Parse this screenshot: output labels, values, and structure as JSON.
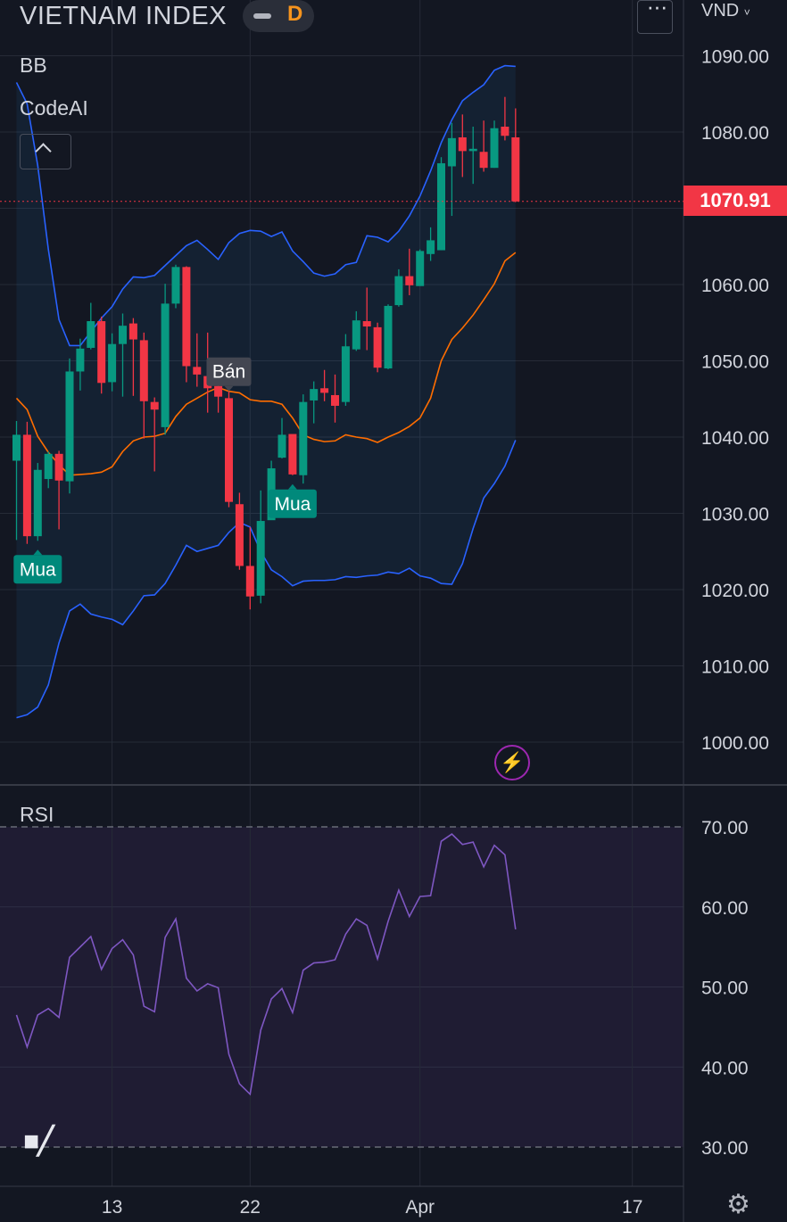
{
  "header": {
    "title": "VIETNAM INDEX",
    "timeframe": "D",
    "currency": "VND",
    "menu_icon": "more-horizontal-icon"
  },
  "indicators": {
    "bb_label": "BB",
    "codeai_label": "CodeAI",
    "rsi_label": "RSI",
    "collapse_icon": "chevron-up-icon"
  },
  "last_price": "1070.91",
  "colors": {
    "background": "#131722",
    "up_candle": "#089981",
    "down_candle": "#f23645",
    "bb_band": "#2962ff",
    "bb_basis": "#ff6d00",
    "rsi_line": "#7e57c2",
    "buy_label": "#00897b",
    "sell_label": "#434651"
  },
  "icons": [
    "lightning-icon",
    "tradingview-logo-icon",
    "settings-gear-icon"
  ],
  "chart_data": [
    {
      "type": "candlestick",
      "title": "VIETNAM INDEX",
      "timeframe": "D",
      "y_axis_ticks": [
        "1090.00",
        "1080.00",
        "1070.00",
        "1060.00",
        "1050.00",
        "1040.00",
        "1030.00",
        "1020.00",
        "1010.00",
        "1000.00"
      ],
      "ylim": [
        996,
        1096
      ],
      "x_axis_ticks": [
        {
          "label": "13",
          "index": 9
        },
        {
          "label": "22",
          "index": 22
        },
        {
          "label": "Apr",
          "index": 38
        },
        {
          "label": "17",
          "index": 58
        }
      ],
      "last_price": 1070.91,
      "candles": [
        [
          1036.9,
          1040.3,
          1042.1,
          1026.5
        ],
        [
          1040.3,
          1027.0,
          1042.0,
          1026.0
        ],
        [
          1027.0,
          1035.7,
          1036.6,
          1026.4
        ],
        [
          1034.5,
          1037.8,
          1038.1,
          1033.3
        ],
        [
          1037.8,
          1034.3,
          1038.2,
          1027.9
        ],
        [
          1034.2,
          1048.6,
          1050.3,
          1032.6
        ],
        [
          1048.6,
          1051.6,
          1052.9,
          1046.1
        ],
        [
          1051.7,
          1055.2,
          1057.6,
          1051.5
        ],
        [
          1055.2,
          1047.1,
          1055.8,
          1045.7
        ],
        [
          1047.2,
          1052.2,
          1053.6,
          1046.0
        ],
        [
          1052.2,
          1054.6,
          1056.2,
          1045.3
        ],
        [
          1054.9,
          1052.8,
          1055.6,
          1045.4
        ],
        [
          1052.7,
          1044.7,
          1053.7,
          1039.8
        ],
        [
          1044.6,
          1043.6,
          1045.2,
          1035.5
        ],
        [
          1041.3,
          1057.5,
          1060.1,
          1040.3
        ],
        [
          1057.5,
          1062.3,
          1062.6,
          1056.9
        ],
        [
          1062.3,
          1049.3,
          1062.4,
          1047.2
        ],
        [
          1049.2,
          1048.2,
          1053.6,
          1046.6
        ],
        [
          1048.0,
          1046.4,
          1053.7,
          1043.2
        ],
        [
          1046.7,
          1045.3,
          1050.3,
          1043.2
        ],
        [
          1045.1,
          1031.5,
          1046.0,
          1030.8
        ],
        [
          1031.2,
          1023.1,
          1032.7,
          1022.6
        ],
        [
          1023.1,
          1019.1,
          1028.2,
          1017.4
        ],
        [
          1019.2,
          1029.0,
          1033.0,
          1018.2
        ],
        [
          1029.1,
          1035.9,
          1036.9,
          1030.6
        ],
        [
          1037.3,
          1040.3,
          1042.5,
          1037.2
        ],
        [
          1040.4,
          1035.1,
          1040.3,
          1035.0
        ],
        [
          1035.0,
          1044.6,
          1045.6,
          1033.9
        ],
        [
          1044.8,
          1046.3,
          1047.3,
          1041.8
        ],
        [
          1046.4,
          1045.8,
          1048.8,
          1044.7
        ],
        [
          1045.5,
          1044.1,
          1048.2,
          1041.9
        ],
        [
          1044.6,
          1051.9,
          1053.5,
          1044.1
        ],
        [
          1051.5,
          1055.3,
          1056.5,
          1051.3
        ],
        [
          1055.2,
          1054.5,
          1059.6,
          1051.4
        ],
        [
          1054.4,
          1049.1,
          1055.0,
          1048.5
        ],
        [
          1049.0,
          1057.2,
          1057.4,
          1048.9
        ],
        [
          1057.3,
          1061.1,
          1062.0,
          1057.1
        ],
        [
          1061.1,
          1059.9,
          1064.7,
          1058.6
        ],
        [
          1059.8,
          1064.4,
          1064.6,
          1059.9
        ],
        [
          1064.0,
          1065.8,
          1067.5,
          1063.1
        ],
        [
          1064.5,
          1075.9,
          1076.7,
          1064.5
        ],
        [
          1075.5,
          1079.2,
          1081.2,
          1069.0
        ],
        [
          1079.3,
          1077.5,
          1082.3,
          1074.1
        ],
        [
          1077.5,
          1077.8,
          1080.7,
          1073.2
        ],
        [
          1077.4,
          1075.3,
          1081.5,
          1074.8
        ],
        [
          1075.3,
          1080.5,
          1081.5,
          1075.3
        ],
        [
          1080.7,
          1079.5,
          1084.6,
          1078.9
        ],
        [
          1079.3,
          1070.9,
          1083.1,
          1070.8
        ]
      ],
      "series": [
        {
          "name": "BB upper",
          "values": [
            1086.5,
            1083.7,
            1075.6,
            1064.6,
            1055.4,
            1052.0,
            1052.0,
            1053.8,
            1055.6,
            1057.1,
            1059.4,
            1061.0,
            1060.9,
            1061.2,
            1062.5,
            1063.8,
            1065.1,
            1065.8,
            1064.6,
            1063.3,
            1065.5,
            1066.7,
            1067.1,
            1067.0,
            1066.3,
            1066.9,
            1064.4,
            1063.0,
            1061.5,
            1061.1,
            1061.4,
            1062.6,
            1062.9,
            1066.4,
            1066.2,
            1065.6,
            1067.0,
            1069.0,
            1071.6,
            1074.9,
            1078.6,
            1081.6,
            1084.1,
            1085.2,
            1086.2,
            1088.1,
            1088.7,
            1088.6
          ]
        },
        {
          "name": "BB basis",
          "values": [
            1045.1,
            1043.6,
            1040.1,
            1038.0,
            1036.4,
            1035.0,
            1035.1,
            1035.2,
            1035.4,
            1036.1,
            1038.1,
            1039.5,
            1040.0,
            1040.1,
            1040.5,
            1042.7,
            1044.3,
            1045.1,
            1045.9,
            1046.5,
            1046.0,
            1045.8,
            1044.9,
            1044.7,
            1044.7,
            1044.3,
            1042.5,
            1040.3,
            1039.7,
            1039.4,
            1039.5,
            1040.3,
            1040.0,
            1039.8,
            1039.3,
            1040.0,
            1040.6,
            1041.4,
            1042.5,
            1045.1,
            1050.0,
            1052.8,
            1054.3,
            1056.0,
            1058.0,
            1060.1,
            1063.1,
            1064.2
          ]
        },
        {
          "name": "BB lower",
          "values": [
            1003.2,
            1003.6,
            1004.6,
            1007.5,
            1013.0,
            1017.2,
            1018.1,
            1016.8,
            1016.4,
            1016.1,
            1015.4,
            1017.2,
            1019.2,
            1019.3,
            1020.8,
            1023.2,
            1025.8,
            1025.0,
            1025.4,
            1025.8,
            1027.5,
            1028.8,
            1028.2,
            1025.0,
            1022.6,
            1021.7,
            1020.5,
            1021.1,
            1021.2,
            1021.2,
            1021.3,
            1021.7,
            1021.6,
            1021.8,
            1021.9,
            1022.3,
            1022.1,
            1022.8,
            1021.8,
            1021.5,
            1020.8,
            1020.7,
            1023.4,
            1028.0,
            1032.0,
            1033.9,
            1036.2,
            1039.6
          ]
        },
        {
          "name": "RSI",
          "values": [
            46.5,
            42.5,
            46.5,
            47.3,
            46.2,
            53.7,
            55.0,
            56.3,
            52.2,
            54.8,
            55.9,
            54.0,
            47.6,
            46.9,
            56.2,
            58.5,
            51.1,
            49.5,
            50.4,
            49.9,
            41.6,
            37.9,
            36.6,
            44.6,
            48.5,
            49.8,
            46.8,
            52.1,
            53.0,
            53.1,
            53.4,
            56.6,
            58.5,
            57.7,
            53.5,
            58.2,
            62.1,
            58.8,
            61.3,
            61.4,
            68.2,
            69.1,
            67.8,
            68.1,
            65.0,
            67.7,
            66.5,
            57.2
          ]
        }
      ]
    },
    {
      "type": "line",
      "title": "RSI",
      "y_axis_ticks": [
        "70.00",
        "60.00",
        "50.00",
        "40.00",
        "30.00"
      ],
      "ylim": [
        30,
        70
      ],
      "overbought": 70,
      "oversold": 30
    }
  ],
  "markers": [
    {
      "label": "Mua",
      "index": 2
    },
    {
      "label": "Bán",
      "index": 20
    },
    {
      "label": "Mua",
      "index": 26
    }
  ]
}
